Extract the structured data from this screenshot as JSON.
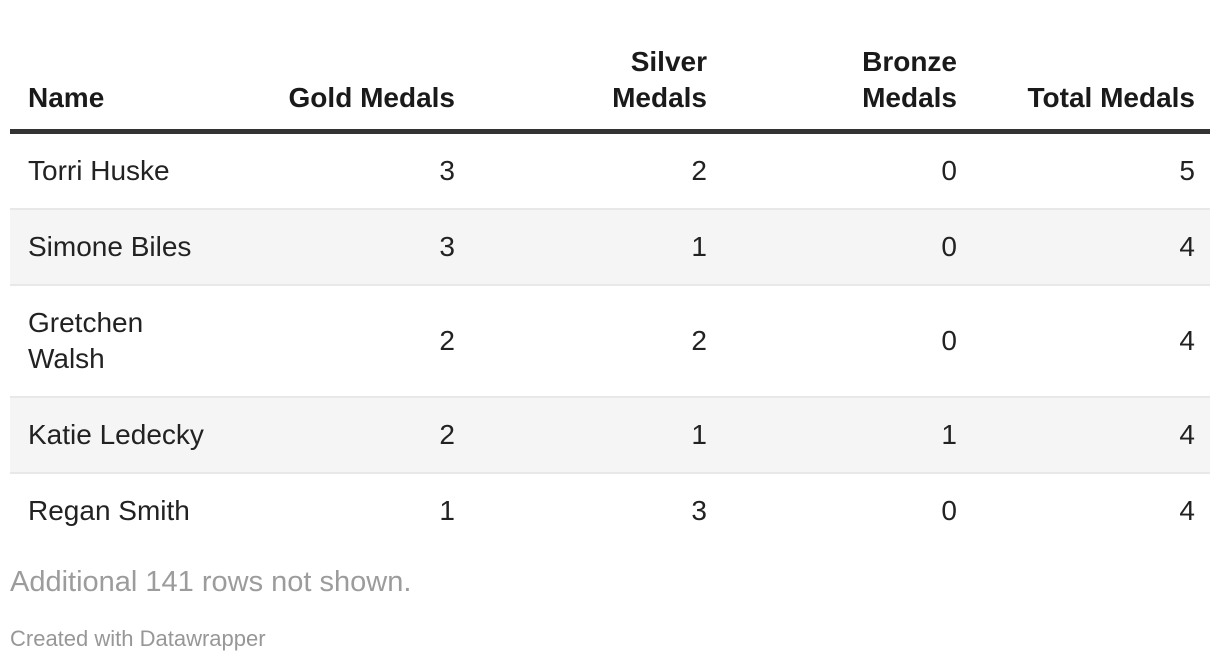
{
  "table": {
    "columns": [
      {
        "id": "name",
        "label": "Name",
        "align": "left"
      },
      {
        "id": "gold",
        "label": "Gold Medals",
        "align": "right"
      },
      {
        "id": "silver",
        "label": "Silver\nMedals",
        "align": "right"
      },
      {
        "id": "bronze",
        "label": "Bronze\nMedals",
        "align": "right"
      },
      {
        "id": "total",
        "label": "Total Medals",
        "align": "right"
      }
    ],
    "rows": [
      {
        "cells": [
          "Torri Huske",
          "3",
          "2",
          "0",
          "5"
        ]
      },
      {
        "cells": [
          "Simone Biles",
          "3",
          "1",
          "0",
          "4"
        ]
      },
      {
        "cells": [
          "Gretchen\nWalsh",
          "2",
          "2",
          "0",
          "4"
        ]
      },
      {
        "cells": [
          "Katie Ledecky",
          "2",
          "1",
          "1",
          "4"
        ]
      },
      {
        "cells": [
          "Regan Smith",
          "1",
          "3",
          "0",
          "4"
        ]
      }
    ]
  },
  "footnote": "Additional 141 rows not shown.",
  "hidden_row_count": 141,
  "attribution": "Created with Datawrapper",
  "colors": {
    "header_text": "#1a1a1a",
    "body_text": "#222222",
    "header_rule": "#333333",
    "row_separator": "#e8e8e8",
    "stripe_background": "#f5f5f5",
    "footnote_text": "#9c9c9c",
    "attribution_text": "#979797",
    "page_background": "#ffffff"
  },
  "chart_data": {
    "type": "table",
    "columns": [
      "Name",
      "Gold Medals",
      "Silver Medals",
      "Bronze Medals",
      "Total Medals"
    ],
    "rows": [
      [
        "Torri Huske",
        3,
        2,
        0,
        5
      ],
      [
        "Simone Biles",
        3,
        1,
        0,
        4
      ],
      [
        "Gretchen Walsh",
        2,
        2,
        0,
        4
      ],
      [
        "Katie Ledecky",
        2,
        1,
        1,
        4
      ],
      [
        "Regan Smith",
        1,
        3,
        0,
        4
      ]
    ],
    "footnote": "Additional 141 rows not shown.",
    "hidden_rows": 141,
    "attribution": "Created with Datawrapper",
    "layout_hints": {
      "zebra_striping": true,
      "numeric_columns_right_aligned": true,
      "header_rule": "thick dark bottom border"
    }
  }
}
